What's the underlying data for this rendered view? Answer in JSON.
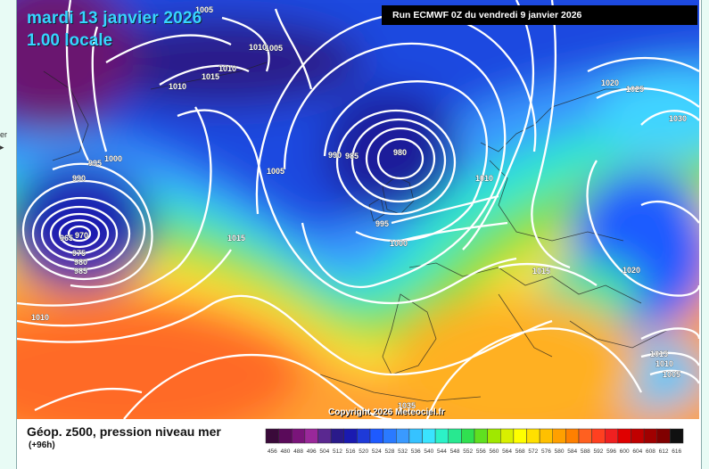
{
  "header": {
    "date": "mardi 13 janvier 2026",
    "time": "1.00 locale",
    "run": "Run ECMWF 0Z du vendredi 9 janvier 2026"
  },
  "side_text": "er",
  "copyright": "Copyright 2026 Meteociel.fr",
  "legend": {
    "title": "Géop. z500, pression niveau mer",
    "subtitle": "(+96h)",
    "scale_values": [
      "456",
      "480",
      "488",
      "496",
      "504",
      "512",
      "516",
      "520",
      "524",
      "528",
      "532",
      "536",
      "540",
      "544",
      "548",
      "552",
      "556",
      "560",
      "564",
      "568",
      "572",
      "576",
      "580",
      "584",
      "588",
      "592",
      "596",
      "600",
      "604",
      "608",
      "612",
      "616"
    ],
    "scale_colors": [
      "#3a0a3a",
      "#5a0a5a",
      "#7a147a",
      "#9a289a",
      "#5a2890",
      "#2a1a8a",
      "#1a1ab0",
      "#1e3ad8",
      "#1e5aff",
      "#2a7aff",
      "#3a9aff",
      "#36c2ff",
      "#3ae4ff",
      "#2cf2c8",
      "#28e890",
      "#30e050",
      "#60e020",
      "#a0e800",
      "#d8f000",
      "#ffff00",
      "#ffe000",
      "#ffc000",
      "#ffa000",
      "#ff8000",
      "#ff6020",
      "#ff4020",
      "#f02020",
      "#e00000",
      "#c00000",
      "#a00000",
      "#800000",
      "#101010"
    ]
  },
  "pressure_labels": [
    "1005",
    "1005",
    "1010",
    "1015",
    "1010",
    "1000",
    "995",
    "990",
    "1005",
    "990",
    "985",
    "980",
    "1010",
    "970",
    "975",
    "980",
    "985",
    "965",
    "1010",
    "1015",
    "995",
    "1000",
    "1015",
    "1020",
    "1025",
    "1030",
    "1020",
    "1015",
    "1010",
    "1005",
    "1035"
  ]
}
